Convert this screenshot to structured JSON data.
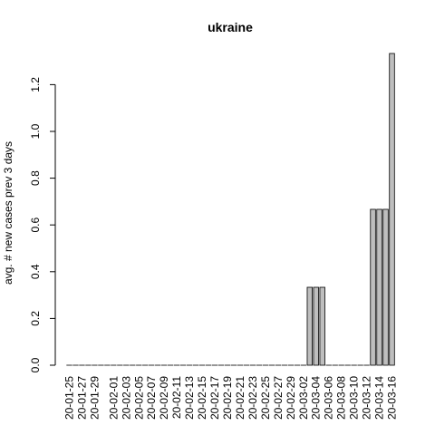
{
  "chart_data": {
    "type": "bar",
    "title": "ukraine",
    "xlabel": "",
    "ylabel": "avg. # new cases prev  3  days",
    "ylim": [
      0,
      1.3333
    ],
    "yticks": [
      "0.0",
      "0.2",
      "0.4",
      "0.6",
      "0.8",
      "1.0",
      "1.2"
    ],
    "yticks_values": [
      0,
      0.2,
      0.4,
      0.6,
      0.8,
      1.0,
      1.2
    ],
    "labeled_categories": [
      "20-01-25",
      "20-01-27",
      "20-01-29",
      "20-02-01",
      "20-02-03",
      "20-02-05",
      "20-02-07",
      "20-02-09",
      "20-02-11",
      "20-02-13",
      "20-02-15",
      "20-02-17",
      "20-02-19",
      "20-02-21",
      "20-02-23",
      "20-02-25",
      "20-02-27",
      "20-02-29",
      "20-03-02",
      "20-03-04",
      "20-03-06",
      "20-03-08",
      "20-03-10",
      "20-03-12",
      "20-03-14",
      "20-03-16"
    ],
    "categories": [
      "20-01-25",
      "20-01-26",
      "20-01-27",
      "20-01-28",
      "20-01-29",
      "20-01-30",
      "20-01-31",
      "20-02-01",
      "20-02-02",
      "20-02-03",
      "20-02-04",
      "20-02-05",
      "20-02-06",
      "20-02-07",
      "20-02-08",
      "20-02-09",
      "20-02-10",
      "20-02-11",
      "20-02-12",
      "20-02-13",
      "20-02-14",
      "20-02-15",
      "20-02-16",
      "20-02-17",
      "20-02-18",
      "20-02-19",
      "20-02-20",
      "20-02-21",
      "20-02-22",
      "20-02-23",
      "20-02-24",
      "20-02-25",
      "20-02-26",
      "20-02-27",
      "20-02-28",
      "20-02-29",
      "20-03-01",
      "20-03-02",
      "20-03-03",
      "20-03-04",
      "20-03-05",
      "20-03-06",
      "20-03-07",
      "20-03-08",
      "20-03-09",
      "20-03-10",
      "20-03-11",
      "20-03-12",
      "20-03-13",
      "20-03-14",
      "20-03-15",
      "20-03-16"
    ],
    "values": [
      0,
      0,
      0,
      0,
      0,
      0,
      0,
      0,
      0,
      0,
      0,
      0,
      0,
      0,
      0,
      0,
      0,
      0,
      0,
      0,
      0,
      0,
      0,
      0,
      0,
      0,
      0,
      0,
      0,
      0,
      0,
      0,
      0,
      0,
      0,
      0,
      0,
      0,
      0.3333,
      0.3333,
      0.3333,
      0,
      0,
      0,
      0,
      0,
      0,
      0,
      0.6667,
      0.6667,
      0.6667,
      1.3333
    ],
    "grid": false,
    "legend": "none"
  }
}
